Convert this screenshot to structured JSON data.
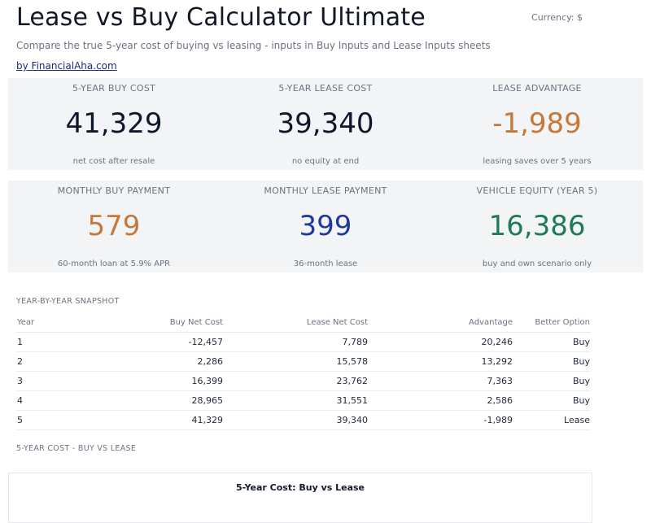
{
  "header": {
    "title": "Lease vs Buy Calculator Ultimate",
    "currency_label": "Currency: $",
    "subtitle": "Compare the true 5-year cost of buying vs leasing - inputs in Buy Inputs and Lease Inputs sheets",
    "brand_link": "by FinancialAha.com"
  },
  "kpis_row1": [
    {
      "label": "5-YEAR BUY COST",
      "value": "41,329",
      "note": "net cost after resale",
      "color": "#0f172a"
    },
    {
      "label": "5-YEAR LEASE COST",
      "value": "39,340",
      "note": "no equity at end",
      "color": "#0f172a"
    },
    {
      "label": "LEASE ADVANTAGE",
      "value": "-1,989",
      "note": "leasing saves over 5 years",
      "color": "#c4793b"
    }
  ],
  "kpis_row2": [
    {
      "label": "MONTHLY BUY PAYMENT",
      "value": "579",
      "note": "60-month loan at 5.9% APR",
      "color": "#c4793b"
    },
    {
      "label": "MONTHLY LEASE PAYMENT",
      "value": "399",
      "note": "36-month lease",
      "color": "#1e3a9e"
    },
    {
      "label": "VEHICLE EQUITY (YEAR 5)",
      "value": "16,386",
      "note": "buy and own scenario only",
      "color": "#1f7a5a"
    }
  ],
  "snapshot": {
    "section_label": "YEAR-BY-YEAR SNAPSHOT",
    "columns": [
      "Year",
      "Buy Net Cost",
      "Lease Net Cost",
      "Advantage",
      "Better Option"
    ],
    "rows": [
      {
        "year": "1",
        "buy": "-12,457",
        "lease": "7,789",
        "advantage": "20,246",
        "better": "Buy"
      },
      {
        "year": "2",
        "buy": "2,286",
        "lease": "15,578",
        "advantage": "13,292",
        "better": "Buy"
      },
      {
        "year": "3",
        "buy": "16,399",
        "lease": "23,762",
        "advantage": "7,363",
        "better": "Buy"
      },
      {
        "year": "4",
        "buy": "28,965",
        "lease": "31,551",
        "advantage": "2,586",
        "better": "Buy"
      },
      {
        "year": "5",
        "buy": "41,329",
        "lease": "39,340",
        "advantage": "-1,989",
        "better": "Lease"
      }
    ]
  },
  "chart_section": {
    "section_label": "5-YEAR COST - BUY VS LEASE",
    "chart_title": "5-Year Cost: Buy vs Lease"
  }
}
